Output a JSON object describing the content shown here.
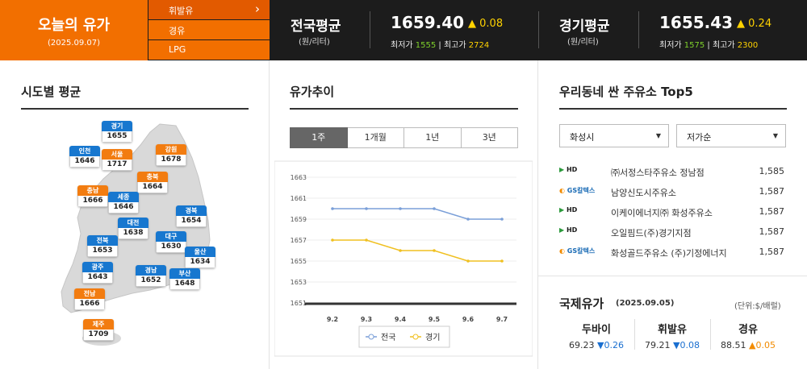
{
  "header": {
    "today_title": "오늘의 유가",
    "today_date": "(2025.09.07)",
    "fuel_menu": [
      {
        "label": "휘발유",
        "active": true
      },
      {
        "label": "경유",
        "active": false
      },
      {
        "label": "LPG",
        "active": false
      }
    ],
    "national": {
      "name": "전국평균",
      "unit": "(원/리터)",
      "price": "1659.40",
      "change": "0.08",
      "min_label": "최저가",
      "min": "1555",
      "max_label": "최고가",
      "max": "2724"
    },
    "gyeonggi": {
      "name": "경기평균",
      "unit": "(원/리터)",
      "price": "1655.43",
      "change": "0.24",
      "min_label": "최저가",
      "min": "1575",
      "max_label": "최고가",
      "max": "2300"
    }
  },
  "regional": {
    "title": "시도별 평균",
    "regions": [
      {
        "name": "경기",
        "value": "1655",
        "color": "blue"
      },
      {
        "name": "인천",
        "value": "1646",
        "color": "blue"
      },
      {
        "name": "서울",
        "value": "1717",
        "color": "orange"
      },
      {
        "name": "강원",
        "value": "1678",
        "color": "orange"
      },
      {
        "name": "충북",
        "value": "1664",
        "color": "orange"
      },
      {
        "name": "충남",
        "value": "1666",
        "color": "orange"
      },
      {
        "name": "세종",
        "value": "1646",
        "color": "blue"
      },
      {
        "name": "경북",
        "value": "1654",
        "color": "blue"
      },
      {
        "name": "대전",
        "value": "1638",
        "color": "blue"
      },
      {
        "name": "전북",
        "value": "1653",
        "color": "blue"
      },
      {
        "name": "대구",
        "value": "1630",
        "color": "blue"
      },
      {
        "name": "울산",
        "value": "1634",
        "color": "blue"
      },
      {
        "name": "광주",
        "value": "1643",
        "color": "blue"
      },
      {
        "name": "경남",
        "value": "1652",
        "color": "blue"
      },
      {
        "name": "부산",
        "value": "1648",
        "color": "blue"
      },
      {
        "name": "전남",
        "value": "1666",
        "color": "orange"
      },
      {
        "name": "제주",
        "value": "1709",
        "color": "orange"
      }
    ]
  },
  "trend": {
    "title": "유가추이",
    "tabs": [
      {
        "label": "1주",
        "active": true
      },
      {
        "label": "1개월",
        "active": false
      },
      {
        "label": "1년",
        "active": false
      },
      {
        "label": "3년",
        "active": false
      }
    ],
    "chart_data": {
      "type": "line",
      "x": [
        "9.2",
        "9.3",
        "9.4",
        "9.5",
        "9.6",
        "9.7"
      ],
      "series": [
        {
          "name": "전국",
          "values": [
            1660,
            1660,
            1660,
            1660,
            1659,
            1659
          ],
          "color": "#7a9fd8"
        },
        {
          "name": "경기",
          "values": [
            1657,
            1657,
            1656,
            1656,
            1655,
            1655
          ],
          "color": "#f0c020"
        }
      ],
      "yticks": [
        "1663",
        "1661",
        "1659",
        "1657",
        "1655",
        "1653",
        "1651"
      ],
      "ylim": [
        1651,
        1663
      ],
      "legend": "bottom"
    }
  },
  "top5": {
    "title": "우리동네 싼 주유소 Top5",
    "city_select": "화성시",
    "sort_select": "저가순",
    "stations": [
      {
        "brand": "hd",
        "brand_label": "HD",
        "name": "㈜서정스타주유소 정남점",
        "price": "1,585"
      },
      {
        "brand": "gs",
        "brand_label": "GS칼텍스",
        "name": "남양신도시주유소",
        "price": "1,587"
      },
      {
        "brand": "hd",
        "brand_label": "HD",
        "name": "이케이에너지㈜ 화성주유소",
        "price": "1,587"
      },
      {
        "brand": "hd",
        "brand_label": "HD",
        "name": "오일핌드(주)경기지점",
        "price": "1,587"
      },
      {
        "brand": "gs",
        "brand_label": "GS칼텍스",
        "name": "화성골드주유소 (주)기정에너지",
        "price": "1,587"
      }
    ]
  },
  "intl": {
    "title": "국제유가",
    "date": "(2025.09.05)",
    "unit": "(단위:$/배럴)",
    "items": [
      {
        "name": "두바이",
        "value": "69.23",
        "change": "0.26",
        "direction": "down"
      },
      {
        "name": "휘발유",
        "value": "79.21",
        "change": "0.08",
        "direction": "down"
      },
      {
        "name": "경유",
        "value": "88.51",
        "change": "0.05",
        "direction": "up"
      }
    ]
  }
}
